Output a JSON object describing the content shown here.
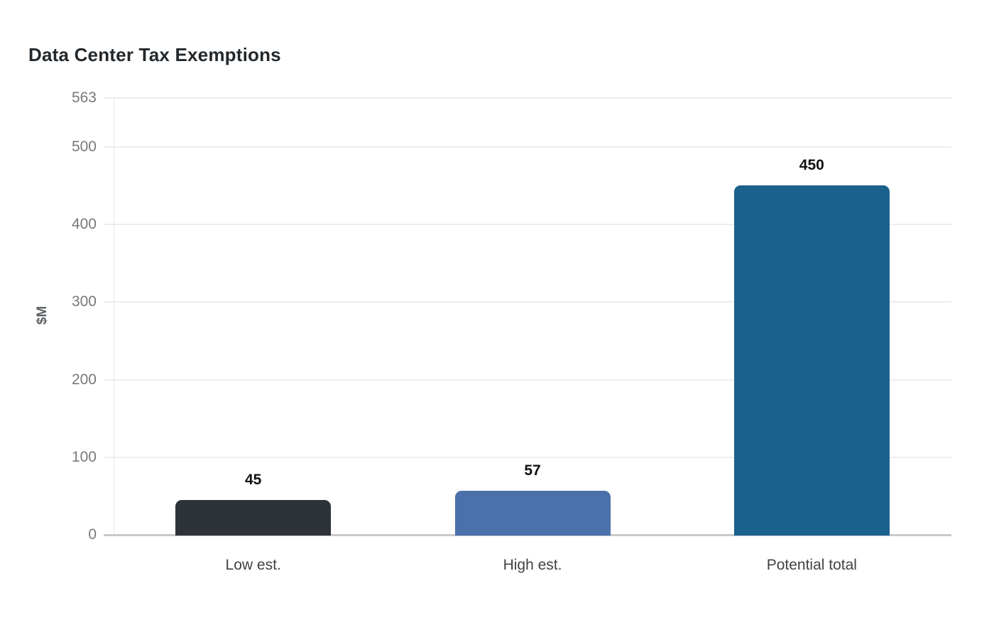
{
  "page": {
    "background_color": "#ffffff"
  },
  "chart_data": {
    "type": "bar",
    "title": "Data Center Tax Exemptions",
    "xlabel": "",
    "ylabel": "$M",
    "categories": [
      "Low est.",
      "High est.",
      "Potential total"
    ],
    "values": [
      45,
      57,
      450
    ],
    "value_labels": [
      "45",
      "57",
      "450"
    ],
    "bar_colors": [
      "#2e3338",
      "#4a71a9",
      "#1a618c"
    ],
    "yticks": [
      0,
      100,
      200,
      300,
      400,
      500,
      563
    ],
    "ylim": [
      0,
      563
    ],
    "grid": "horizontal-only",
    "legend": "none",
    "colors": {
      "gridline": "#ececec",
      "baseline": "#c9c9c9",
      "axis_dotted_line": "#d4d4d4",
      "ytick_label": "#76797c",
      "xtick_label": "#3f4245",
      "value_label": "#101214",
      "title": "#23282c",
      "ylabel": "#5b6064"
    }
  }
}
